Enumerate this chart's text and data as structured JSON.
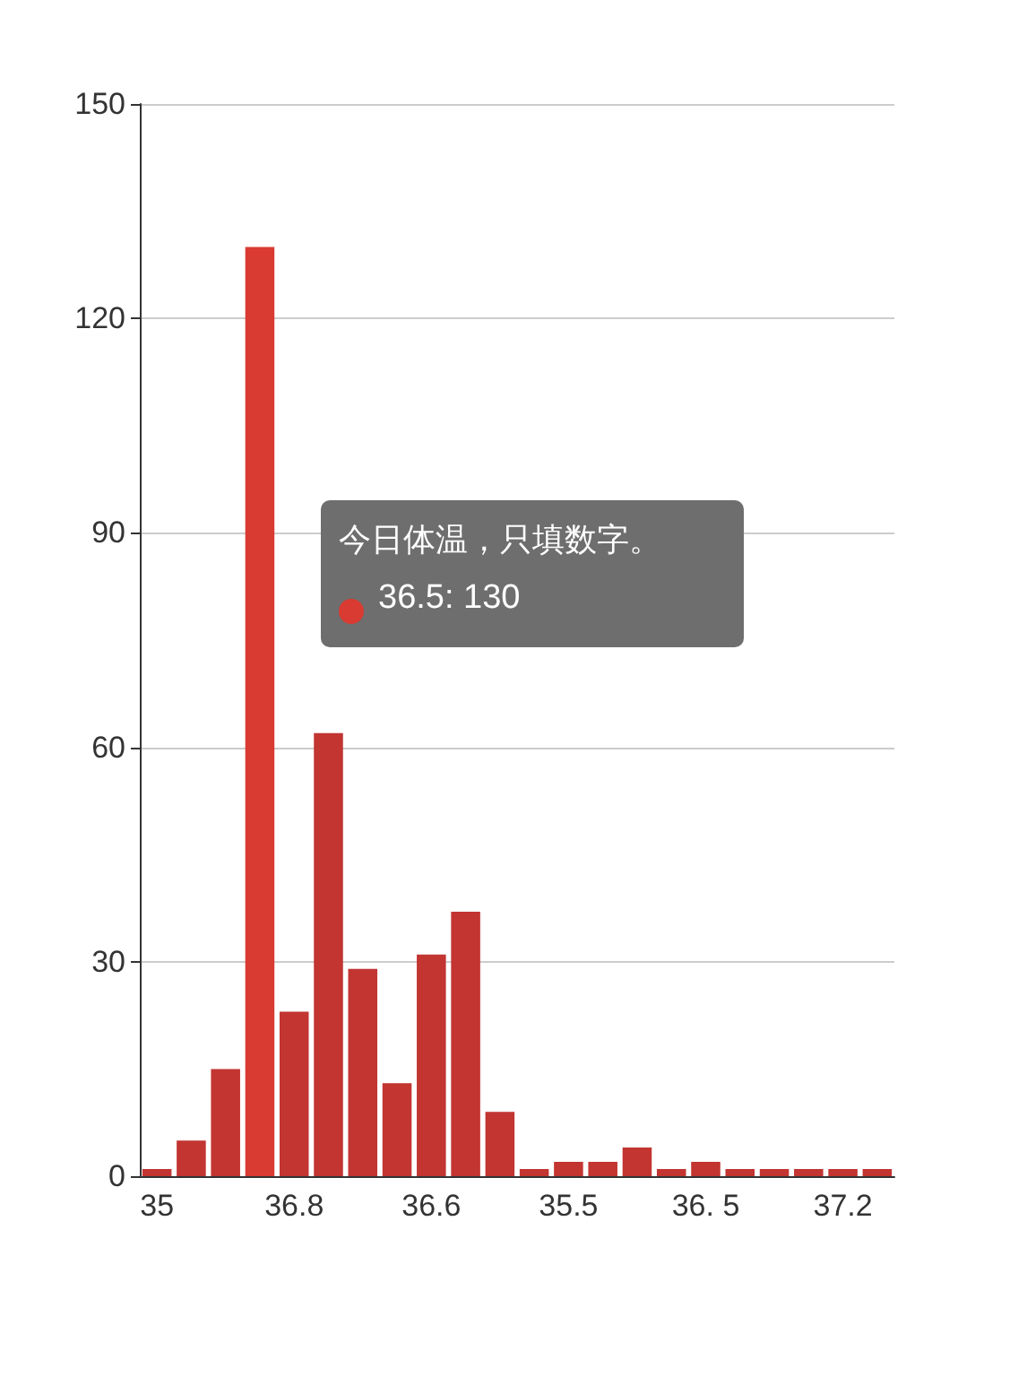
{
  "chart_data": {
    "type": "bar",
    "categories": [
      "35",
      null,
      null,
      null,
      "36.8",
      null,
      null,
      null,
      "36.6",
      null,
      null,
      null,
      "35.5",
      null,
      null,
      null,
      "36. 5",
      null,
      null,
      null,
      "37.2",
      null
    ],
    "values": [
      1,
      5,
      15,
      130,
      23,
      62,
      29,
      13,
      31,
      37,
      9,
      1,
      2,
      2,
      4,
      1,
      2,
      1,
      1,
      1,
      1,
      1
    ],
    "colors": [
      "#c23531",
      "#c23531",
      "#c23531",
      "#d93a32",
      "#c23531",
      "#c23531",
      "#c23531",
      "#c23531",
      "#c23531",
      "#c23531",
      "#c23531",
      "#c23531",
      "#c23531",
      "#c23531",
      "#c23531",
      "#c23531",
      "#c23531",
      "#c23531",
      "#c23531",
      "#c23531",
      "#c23531",
      "#c23531"
    ],
    "ylim": [
      0,
      150
    ],
    "yticks": [
      0,
      30,
      60,
      90,
      120,
      150
    ],
    "grid": "y",
    "annotations": [
      "今日体温，只填数字。",
      "36.5: 130"
    ]
  }
}
